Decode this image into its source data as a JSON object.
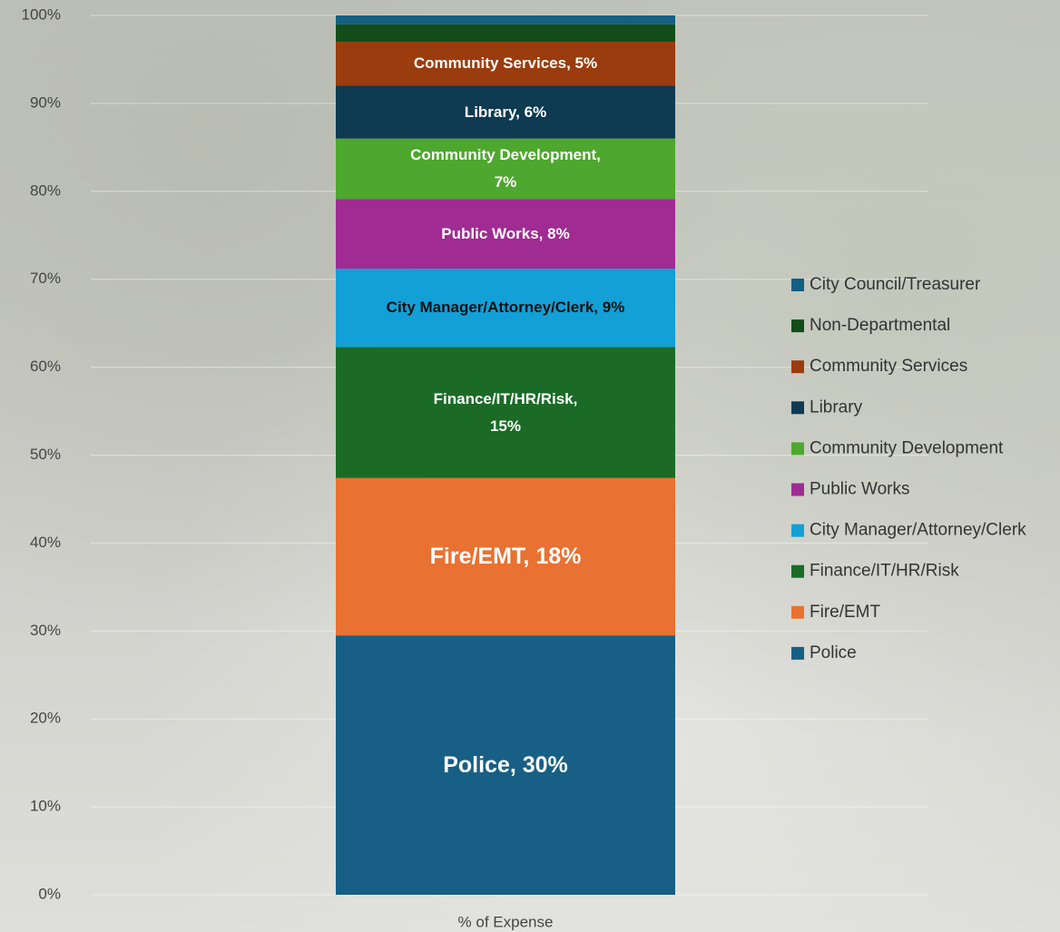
{
  "chart_data": {
    "type": "stacked_bar",
    "categories": [
      "% of Expense"
    ],
    "ylim": [
      0,
      100
    ],
    "yticks": [
      {
        "value": 0,
        "label": "0%"
      },
      {
        "value": 10,
        "label": "10%"
      },
      {
        "value": 20,
        "label": "20%"
      },
      {
        "value": 30,
        "label": "30%"
      },
      {
        "value": 40,
        "label": "40%"
      },
      {
        "value": 50,
        "label": "50%"
      },
      {
        "value": 60,
        "label": "60%"
      },
      {
        "value": 70,
        "label": "70%"
      },
      {
        "value": 80,
        "label": "80%"
      },
      {
        "value": 90,
        "label": "90%"
      },
      {
        "value": 100,
        "label": "100%"
      }
    ],
    "grid": true,
    "legend": "right",
    "series": [
      {
        "name": "Police",
        "color": "#185f85",
        "values": [
          29.5
        ],
        "value_labels": [
          "Police, 30%"
        ]
      },
      {
        "name": "Fire/EMT",
        "color": "#e97131",
        "values": [
          17.9
        ],
        "value_labels": [
          "Fire/EMT, 18%"
        ]
      },
      {
        "name": "Finance/IT/HR/Risk",
        "color": "#1b6b27",
        "values": [
          14.9
        ],
        "value_labels": [
          "Finance/IT/HR/Risk,\n15%"
        ]
      },
      {
        "name": "City Manager/Attorney/Clerk",
        "color": "#12a0d7",
        "values": [
          8.9
        ],
        "value_labels": [
          "City Manager/Attorney/Clerk, 9%"
        ]
      },
      {
        "name": "Public Works",
        "color": "#a02b93",
        "values": [
          7.9
        ],
        "value_labels": [
          "Public Works, 8%"
        ]
      },
      {
        "name": "Community Development",
        "color": "#4ea72e",
        "values": [
          6.9
        ],
        "value_labels": [
          "Community Development,\n7%"
        ]
      },
      {
        "name": "Library",
        "color": "#0e3a52",
        "values": [
          6.0
        ],
        "value_labels": [
          "Library, 6%"
        ]
      },
      {
        "name": "Community Services",
        "color": "#9a3c0e",
        "values": [
          5.0
        ],
        "value_labels": [
          "Community Services, 5%"
        ]
      },
      {
        "name": "Non-Departmental",
        "color": "#124d1a",
        "values": [
          2.0
        ]
      },
      {
        "name": "City Council/Treasurer",
        "color": "#155f82",
        "values": [
          1.0
        ]
      }
    ]
  }
}
